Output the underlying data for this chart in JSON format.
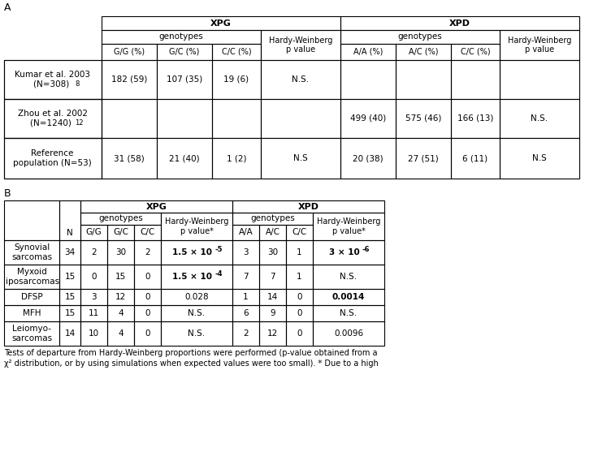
{
  "table_A": {
    "rows": [
      {
        "label": "Kumar et al. 2003\n(N=308) ",
        "superscript": "8",
        "xpg": [
          "182 (59)",
          "107 (35)",
          "19 (6)"
        ],
        "hw_xpg": "N.S.",
        "xpd": [
          "",
          "",
          ""
        ],
        "hw_xpd": ""
      },
      {
        "label": "Zhou et al. 2002\n(N=1240) ",
        "superscript": "12",
        "xpg": [
          "",
          "",
          ""
        ],
        "hw_xpg": "",
        "xpd": [
          "499 (40)",
          "575 (46)",
          "166 (13)"
        ],
        "hw_xpd": "N.S."
      },
      {
        "label": "Reference\npopulation (N=53)",
        "superscript": "",
        "xpg": [
          "31 (58)",
          "21 (40)",
          "1 (2)"
        ],
        "hw_xpg": "N.S",
        "xpd": [
          "20 (38)",
          "27 (51)",
          "6 (11)"
        ],
        "hw_xpd": "N.S"
      }
    ]
  },
  "table_B": {
    "rows": [
      {
        "label": "Synovial\nsarcomas",
        "n": "34",
        "xpg": [
          "2",
          "30",
          "2"
        ],
        "hw_xpg": "1.5 × 10",
        "hw_xpg_exp": "-5",
        "hw_xpg_bold": true,
        "xpd": [
          "3",
          "30",
          "1"
        ],
        "hw_xpd": "3 × 10",
        "hw_xpd_exp": "-6",
        "hw_xpd_bold": true
      },
      {
        "label": "Myxoid\nliposarcomas",
        "n": "15",
        "xpg": [
          "0",
          "15",
          "0"
        ],
        "hw_xpg": "1.5 × 10",
        "hw_xpg_exp": "-4",
        "hw_xpg_bold": true,
        "xpd": [
          "7",
          "7",
          "1"
        ],
        "hw_xpd": "N.S.",
        "hw_xpd_exp": "",
        "hw_xpd_bold": false
      },
      {
        "label": "DFSP",
        "n": "15",
        "xpg": [
          "3",
          "12",
          "0"
        ],
        "hw_xpg": "0.028",
        "hw_xpg_exp": "",
        "hw_xpg_bold": false,
        "xpd": [
          "1",
          "14",
          "0"
        ],
        "hw_xpd": "0.0014",
        "hw_xpd_exp": "",
        "hw_xpd_bold": true
      },
      {
        "label": "MFH",
        "n": "15",
        "xpg": [
          "11",
          "4",
          "0"
        ],
        "hw_xpg": "N.S.",
        "hw_xpg_exp": "",
        "hw_xpg_bold": false,
        "xpd": [
          "6",
          "9",
          "0"
        ],
        "hw_xpd": "N.S.",
        "hw_xpd_exp": "",
        "hw_xpd_bold": false
      },
      {
        "label": "Leiomyo-\nsarcomas",
        "n": "14",
        "xpg": [
          "10",
          "4",
          "0"
        ],
        "hw_xpg": "N.S.",
        "hw_xpg_exp": "",
        "hw_xpg_bold": false,
        "xpd": [
          "2",
          "12",
          "0"
        ],
        "hw_xpd": "0.0096",
        "hw_xpd_exp": "",
        "hw_xpd_bold": false
      }
    ]
  },
  "footer1": "Tests of departure from Hardy-Weinberg proportions were performed (p-value obtained from a",
  "footer2": "χ² distribution, or by using simulations when expected values were too small). * Due to a high"
}
